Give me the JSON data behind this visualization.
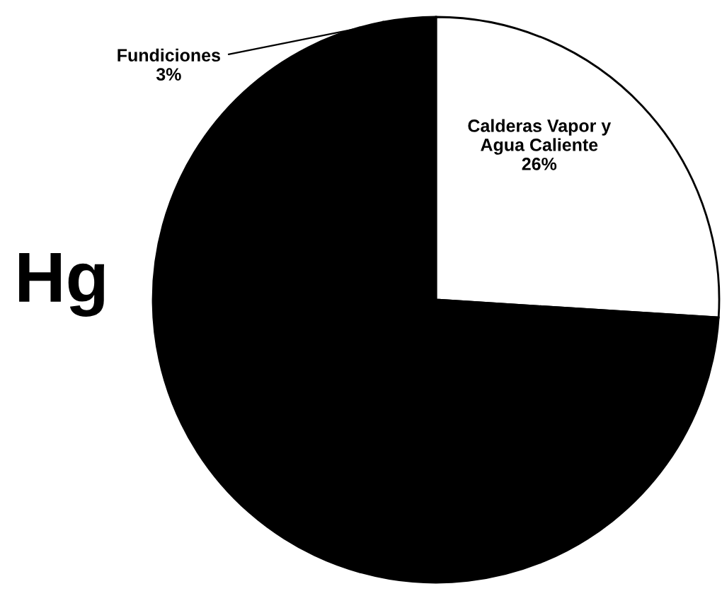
{
  "chart_data": {
    "type": "pie",
    "categories": [
      "Calderas Vapor y Agua Caliente",
      null,
      "Fundiciones"
    ],
    "values": [
      26,
      71,
      3
    ],
    "value_labels": [
      "26%",
      null,
      "3%"
    ],
    "colors": [
      "#ffffff",
      "#000000",
      "#000000"
    ],
    "annotations": [
      "Hg"
    ]
  }
}
